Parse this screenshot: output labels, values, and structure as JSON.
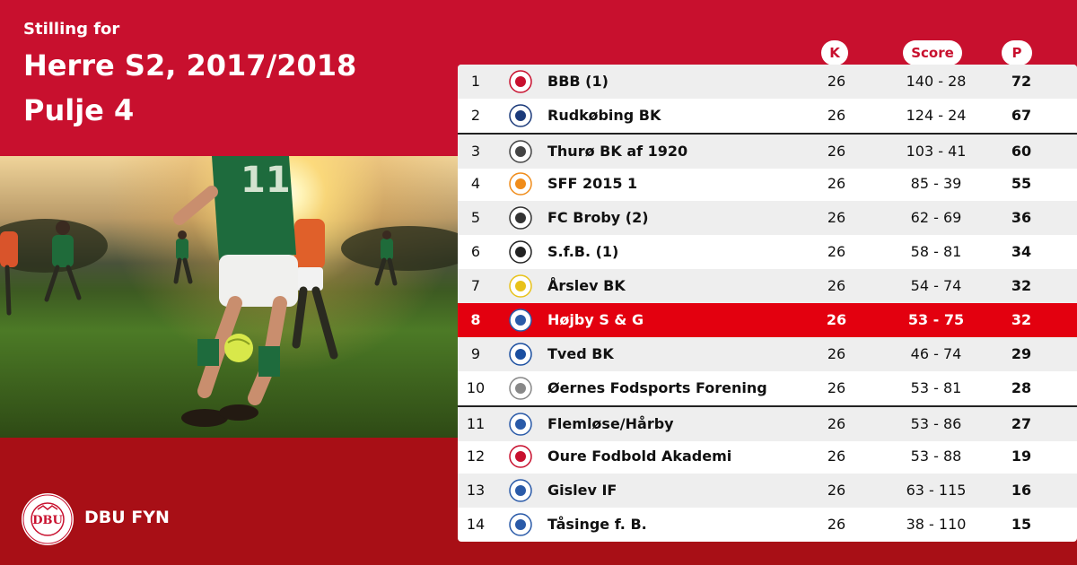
{
  "header": {
    "subtitle": "Stilling for",
    "title_line1": "Herre S2, 2017/2018",
    "title_line2": "Pulje 4"
  },
  "columns": {
    "k": "K",
    "score": "Score",
    "p": "P"
  },
  "brand": {
    "name": "DBU FYN",
    "crest_text": "DBU",
    "crest_ring": "DANSK BOLDSPIL-UNION 1889",
    "accent": "#c8102e"
  },
  "rows": [
    {
      "pos": "1",
      "name": "BBB (1)",
      "k": "26",
      "score": "140 - 28",
      "p": "72"
    },
    {
      "pos": "2",
      "name": "Rudkøbing BK",
      "k": "26",
      "score": "124 - 24",
      "p": "67"
    },
    {
      "pos": "3",
      "name": "Thurø BK af 1920",
      "k": "26",
      "score": "103 - 41",
      "p": "60"
    },
    {
      "pos": "4",
      "name": "SFF 2015 1",
      "k": "26",
      "score": "85 - 39",
      "p": "55"
    },
    {
      "pos": "5",
      "name": "FC Broby (2)",
      "k": "26",
      "score": "62 - 69",
      "p": "36"
    },
    {
      "pos": "6",
      "name": "S.f.B. (1)",
      "k": "26",
      "score": "58 - 81",
      "p": "34"
    },
    {
      "pos": "7",
      "name": "Årslev BK",
      "k": "26",
      "score": "54 - 74",
      "p": "32"
    },
    {
      "pos": "8",
      "name": "Højby S & G",
      "k": "26",
      "score": "53 - 75",
      "p": "32"
    },
    {
      "pos": "9",
      "name": "Tved BK",
      "k": "26",
      "score": "46 - 74",
      "p": "29"
    },
    {
      "pos": "10",
      "name": "Øernes Fodsports Forening",
      "k": "26",
      "score": "53 - 81",
      "p": "28"
    },
    {
      "pos": "11",
      "name": "Flemløse/Hårby",
      "k": "26",
      "score": "53 - 86",
      "p": "27"
    },
    {
      "pos": "12",
      "name": "Oure Fodbold Akademi",
      "k": "26",
      "score": "53 - 88",
      "p": "19"
    },
    {
      "pos": "13",
      "name": "Gislev IF",
      "k": "26",
      "score": "63 - 115",
      "p": "16"
    },
    {
      "pos": "14",
      "name": "Tåsinge  f. B.",
      "k": "26",
      "score": "38 - 110",
      "p": "15"
    }
  ]
}
